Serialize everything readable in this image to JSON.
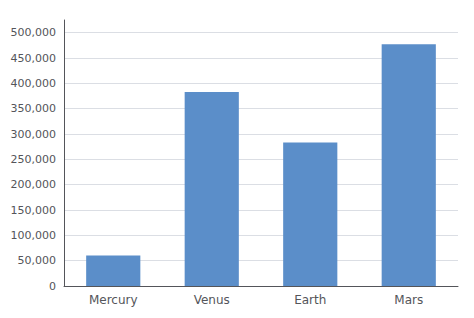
{
  "chart_data": {
    "type": "bar",
    "categories": [
      "Mercury",
      "Venus",
      "Earth",
      "Mars"
    ],
    "values": [
      60000,
      383000,
      283000,
      477000
    ],
    "color": "#5b8ec9",
    "ylim": [
      0,
      525000
    ],
    "yticks": [
      0,
      {
        "value": 50000,
        "label": "50,000"
      },
      {
        "value": 100000,
        "label": "100,000"
      },
      {
        "value": 150000,
        "label": "150,000"
      },
      {
        "value": 200000,
        "label": "200,000"
      },
      {
        "value": 250000,
        "label": "250,000"
      },
      {
        "value": 300000,
        "label": "300,000"
      },
      {
        "value": 350000,
        "label": "350,000"
      },
      {
        "value": 400000,
        "label": "400,000"
      },
      {
        "value": 450000,
        "label": "450,000"
      },
      {
        "value": 500000,
        "label": "500,000"
      }
    ],
    "grid": true
  }
}
